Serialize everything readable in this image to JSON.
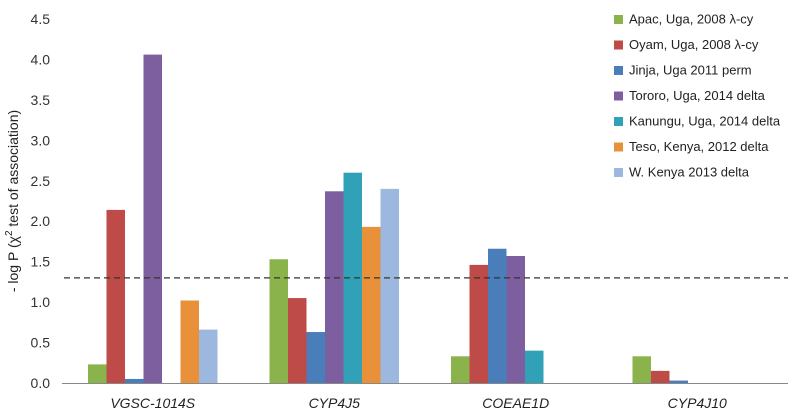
{
  "chart_data": {
    "type": "bar",
    "categories": [
      "VGSC-1014S",
      "CYP4J5",
      "COEAE1D",
      "CYP4J10"
    ],
    "ylabel_parts": [
      "- log P (",
      "χ",
      "2",
      " test of association)"
    ],
    "ylim": [
      0,
      4.5
    ],
    "yticks": [
      "0.0",
      "0.5",
      "1.0",
      "1.5",
      "2.0",
      "2.5",
      "3.0",
      "3.5",
      "4.0",
      "4.5"
    ],
    "ytick_values": [
      0,
      0.5,
      1.0,
      1.5,
      2.0,
      2.5,
      3.0,
      3.5,
      4.0,
      4.5
    ],
    "threshold": 1.3,
    "threshold_style": "dashed",
    "legend_position": "top-right",
    "grid": false,
    "series": [
      {
        "name": "Apac, Uga, 2008 λ-cy",
        "color": "#8BB34B",
        "values": [
          0.23,
          1.53,
          0.33,
          0.33
        ]
      },
      {
        "name": "Oyam, Uga, 2008 λ-cy",
        "color": "#BE4B48",
        "values": [
          2.14,
          1.05,
          1.46,
          0.15
        ]
      },
      {
        "name": "Jinja, Uga 2011 perm",
        "color": "#4A7EBB",
        "values": [
          0.05,
          0.63,
          1.66,
          0.03
        ]
      },
      {
        "name": "Tororo, Uga, 2014 delta",
        "color": "#7D5FA0",
        "values": [
          4.06,
          2.37,
          1.57,
          0
        ]
      },
      {
        "name": "Kanungu, Uga, 2014 delta",
        "color": "#31A1B8",
        "values": [
          0,
          2.6,
          0.4,
          0
        ]
      },
      {
        "name": "Teso, Kenya, 2012 delta",
        "color": "#E8913A",
        "values": [
          1.02,
          1.93,
          0,
          0
        ]
      },
      {
        "name": "W. Kenya 2013  delta",
        "color": "#9DB8DE",
        "values": [
          0.66,
          2.4,
          0,
          0
        ]
      }
    ]
  }
}
